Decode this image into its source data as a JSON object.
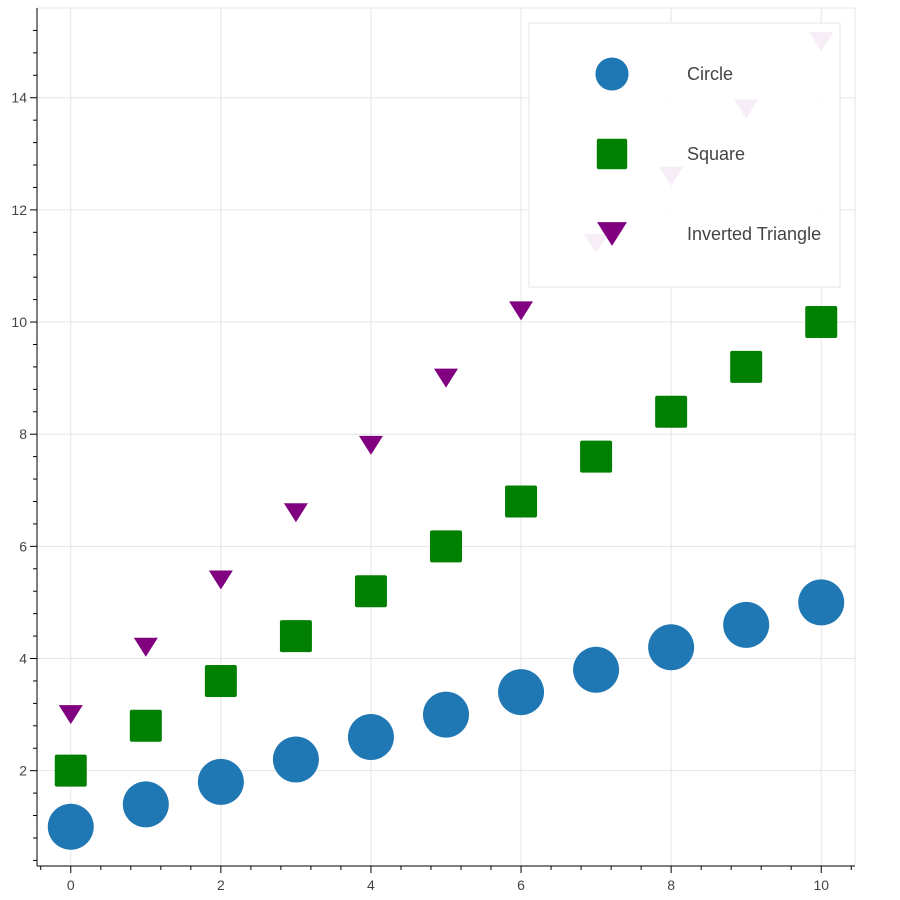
{
  "chart_data": {
    "type": "scatter",
    "title": "",
    "xlabel": "",
    "ylabel": "",
    "xlim": [
      -0.45,
      10.45
    ],
    "ylim": [
      0.3,
      15.6
    ],
    "grid": true,
    "legend_position": "top-right",
    "x_ticks": [
      0,
      2,
      4,
      6,
      8,
      10
    ],
    "y_ticks": [
      2,
      4,
      6,
      8,
      10,
      12,
      14
    ],
    "series": [
      {
        "name": "Circle",
        "marker": "circle",
        "color": "#1f77b4",
        "x": [
          0,
          1,
          2,
          3,
          4,
          5,
          6,
          7,
          8,
          9,
          10
        ],
        "y": [
          1.0,
          1.4,
          1.8,
          2.2,
          2.6,
          3.0,
          3.4,
          3.8,
          4.2,
          4.6,
          5.0
        ]
      },
      {
        "name": "Square",
        "marker": "square",
        "color": "#008000",
        "x": [
          0,
          1,
          2,
          3,
          4,
          5,
          6,
          7,
          8,
          9,
          10
        ],
        "y": [
          2.0,
          2.8,
          3.6,
          4.4,
          5.2,
          6.0,
          6.8,
          7.6,
          8.4,
          9.2,
          10.0
        ]
      },
      {
        "name": "Inverted Triangle",
        "marker": "inverted_triangle",
        "color": "#800080",
        "x": [
          0,
          1,
          2,
          3,
          4,
          5,
          6,
          7,
          8,
          9,
          10
        ],
        "y": [
          3.0,
          4.2,
          5.4,
          6.6,
          7.8,
          9.0,
          10.2,
          11.4,
          12.6,
          13.8,
          15.0
        ]
      }
    ]
  }
}
